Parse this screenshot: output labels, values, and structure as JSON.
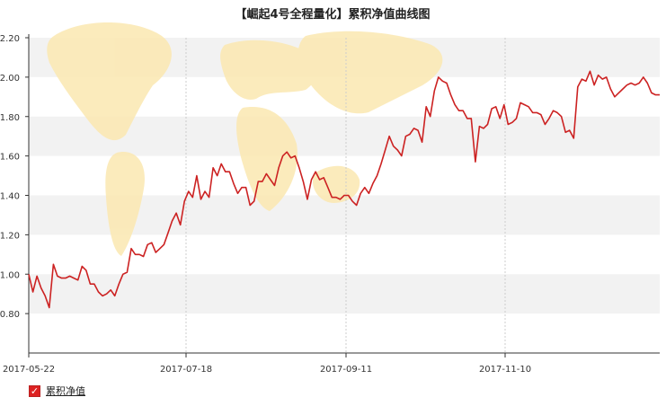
{
  "chart_data": {
    "type": "line",
    "title": "【崛起4号全程量化】累积净值曲线图",
    "x_ticks": [
      "2017-05-22",
      "2017-07-18",
      "2017-09-11",
      "2017-11-10"
    ],
    "ylim": [
      0.6,
      2.2
    ],
    "y_ticks": [
      "0.80",
      "1.00",
      "1.20",
      "1.40",
      "1.60",
      "1.80",
      "2.00",
      "2.20"
    ],
    "grid": true,
    "legend_position": "bottom-left",
    "series": [
      {
        "name": "累积净值",
        "color": "#cc2222",
        "values": [
          1.0,
          0.91,
          0.99,
          0.93,
          0.89,
          0.83,
          1.05,
          0.99,
          0.98,
          0.98,
          0.99,
          0.98,
          0.97,
          1.04,
          1.02,
          0.95,
          0.95,
          0.91,
          0.89,
          0.9,
          0.92,
          0.89,
          0.95,
          1.0,
          1.01,
          1.13,
          1.1,
          1.1,
          1.09,
          1.15,
          1.16,
          1.11,
          1.13,
          1.15,
          1.21,
          1.27,
          1.31,
          1.25,
          1.37,
          1.42,
          1.39,
          1.5,
          1.38,
          1.42,
          1.39,
          1.54,
          1.5,
          1.56,
          1.52,
          1.52,
          1.46,
          1.41,
          1.44,
          1.44,
          1.35,
          1.37,
          1.47,
          1.47,
          1.51,
          1.48,
          1.45,
          1.54,
          1.6,
          1.62,
          1.59,
          1.6,
          1.54,
          1.47,
          1.38,
          1.48,
          1.52,
          1.48,
          1.49,
          1.44,
          1.39,
          1.39,
          1.38,
          1.4,
          1.4,
          1.37,
          1.35,
          1.41,
          1.44,
          1.41,
          1.46,
          1.5,
          1.56,
          1.63,
          1.7,
          1.65,
          1.63,
          1.6,
          1.7,
          1.71,
          1.74,
          1.73,
          1.67,
          1.85,
          1.8,
          1.93,
          2.0,
          1.98,
          1.97,
          1.91,
          1.86,
          1.83,
          1.83,
          1.79,
          1.79,
          1.57,
          1.75,
          1.74,
          1.76,
          1.84,
          1.85,
          1.79,
          1.86,
          1.76,
          1.77,
          1.79,
          1.87,
          1.86,
          1.85,
          1.82,
          1.82,
          1.81,
          1.76,
          1.79,
          1.83,
          1.82,
          1.8,
          1.72,
          1.73,
          1.69,
          1.95,
          1.99,
          1.98,
          2.03,
          1.96,
          2.01,
          1.99,
          2.0,
          1.94,
          1.9,
          1.92,
          1.94,
          1.96,
          1.97,
          1.96,
          1.97,
          2.0,
          1.97,
          1.92,
          1.91,
          1.91
        ]
      }
    ]
  },
  "legend": {
    "label": "累积净值",
    "check_glyph": "✓"
  },
  "colors": {
    "line": "#cc2222",
    "band": "#f2f2f2",
    "map": "#fbe9b5",
    "axis": "#333333"
  }
}
